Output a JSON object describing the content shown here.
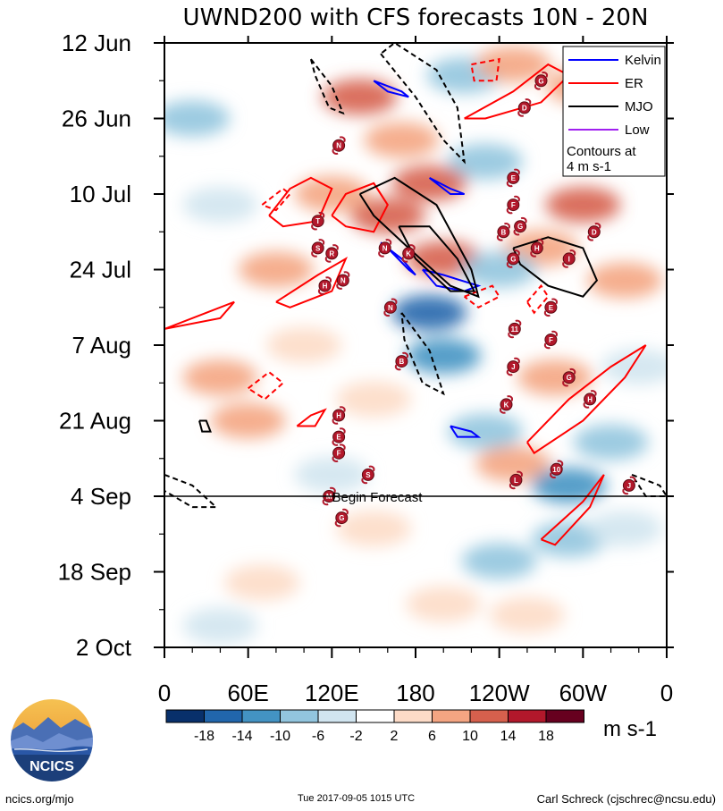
{
  "chart_data": {
    "type": "heatmap",
    "title": "UWND200 with CFS forecasts  10N - 20N",
    "x_axis": {
      "ticks": [
        "0",
        "60E",
        "120E",
        "180",
        "120W",
        "60W",
        "0"
      ],
      "values_deg": [
        0,
        60,
        120,
        180,
        240,
        300,
        360
      ],
      "range_deg": [
        0,
        360
      ]
    },
    "y_axis": {
      "ticks": [
        "12 Jun",
        "26 Jun",
        "10 Jul",
        "24 Jul",
        "7 Aug",
        "21 Aug",
        "4 Sep",
        "18 Sep",
        "2 Oct"
      ],
      "values_day": [
        0,
        14,
        28,
        42,
        56,
        70,
        84,
        98,
        112
      ],
      "range_day": [
        0,
        112
      ]
    },
    "forecast_start_day": 84,
    "forecast_label": "Begin Forecast",
    "colorbar": {
      "levels": [
        "-18",
        "-14",
        "-10",
        "-6",
        "-2",
        "2",
        "6",
        "10",
        "14",
        "18"
      ],
      "colors": [
        "#08306b",
        "#2166ac",
        "#4393c3",
        "#92c5de",
        "#d1e5f0",
        "#ffffff",
        "#fddbc7",
        "#f4a582",
        "#d6604d",
        "#b2182b",
        "#67001f"
      ],
      "units": "m s-1"
    },
    "legend": {
      "entries": [
        {
          "name": "Kelvin",
          "color": "#0000ff"
        },
        {
          "name": "ER",
          "color": "#ff0000"
        },
        {
          "name": "MJO",
          "color": "#000000"
        },
        {
          "name": "Low",
          "color": "#a020f0"
        }
      ],
      "note_line1": "Contours at",
      "note_line2": "4 m s-1",
      "placement": "top-right"
    },
    "anomaly_patches": [
      {
        "lon": 140,
        "day": 10,
        "value": 12
      },
      {
        "lon": 215,
        "day": 6,
        "value": -9
      },
      {
        "lon": 250,
        "day": 4,
        "value": 10
      },
      {
        "lon": 300,
        "day": 8,
        "value": 8
      },
      {
        "lon": 20,
        "day": 14,
        "value": -6
      },
      {
        "lon": 170,
        "day": 18,
        "value": 10
      },
      {
        "lon": 230,
        "day": 22,
        "value": -7
      },
      {
        "lon": 190,
        "day": 26,
        "value": 14
      },
      {
        "lon": 160,
        "day": 32,
        "value": 12
      },
      {
        "lon": 120,
        "day": 28,
        "value": 8
      },
      {
        "lon": 40,
        "day": 30,
        "value": -5
      },
      {
        "lon": 300,
        "day": 30,
        "value": 12
      },
      {
        "lon": 270,
        "day": 38,
        "value": 10
      },
      {
        "lon": 200,
        "day": 40,
        "value": 12
      },
      {
        "lon": 240,
        "day": 42,
        "value": -6
      },
      {
        "lon": 330,
        "day": 44,
        "value": 8
      },
      {
        "lon": 80,
        "day": 42,
        "value": 7
      },
      {
        "lon": 190,
        "day": 50,
        "value": -16
      },
      {
        "lon": 200,
        "day": 58,
        "value": -12
      },
      {
        "lon": 100,
        "day": 56,
        "value": 6
      },
      {
        "lon": 40,
        "day": 62,
        "value": 8
      },
      {
        "lon": 280,
        "day": 62,
        "value": 9
      },
      {
        "lon": 340,
        "day": 60,
        "value": -5
      },
      {
        "lon": 150,
        "day": 66,
        "value": 6
      },
      {
        "lon": 60,
        "day": 70,
        "value": 10
      },
      {
        "lon": 230,
        "day": 72,
        "value": -6
      },
      {
        "lon": 320,
        "day": 74,
        "value": -8
      },
      {
        "lon": 250,
        "day": 78,
        "value": 8
      },
      {
        "lon": 120,
        "day": 80,
        "value": -5
      },
      {
        "lon": 290,
        "day": 82,
        "value": -10
      },
      {
        "lon": 290,
        "day": 92,
        "value": -9
      },
      {
        "lon": 240,
        "day": 96,
        "value": -6
      },
      {
        "lon": 330,
        "day": 90,
        "value": -5
      },
      {
        "lon": 150,
        "day": 90,
        "value": 6
      },
      {
        "lon": 70,
        "day": 100,
        "value": 5
      },
      {
        "lon": 260,
        "day": 106,
        "value": 5
      },
      {
        "lon": 40,
        "day": 108,
        "value": -4
      },
      {
        "lon": 200,
        "day": 104,
        "value": 4
      }
    ],
    "contours": [
      {
        "wave": "ER",
        "sign": "pos",
        "points": [
          [
            75,
            32
          ],
          [
            90,
            27
          ],
          [
            105,
            25
          ],
          [
            120,
            27
          ],
          [
            110,
            33
          ],
          [
            85,
            34
          ],
          [
            75,
            32
          ]
        ]
      },
      {
        "wave": "ER",
        "sign": "pos",
        "points": [
          [
            80,
            48
          ],
          [
            110,
            43
          ],
          [
            130,
            40
          ],
          [
            120,
            46
          ],
          [
            90,
            49
          ],
          [
            80,
            48
          ]
        ]
      },
      {
        "wave": "ER",
        "sign": "pos",
        "points": [
          [
            0,
            53
          ],
          [
            30,
            50
          ],
          [
            50,
            48
          ],
          [
            40,
            51
          ],
          [
            0,
            53
          ]
        ]
      },
      {
        "wave": "ER",
        "sign": "pos",
        "points": [
          [
            215,
            14
          ],
          [
            250,
            9
          ],
          [
            275,
            4
          ],
          [
            290,
            6
          ],
          [
            270,
            11
          ],
          [
            230,
            14
          ],
          [
            215,
            14
          ]
        ]
      },
      {
        "wave": "ER",
        "sign": "pos",
        "points": [
          [
            260,
            74
          ],
          [
            290,
            66
          ],
          [
            320,
            60
          ],
          [
            345,
            56
          ],
          [
            330,
            62
          ],
          [
            300,
            70
          ],
          [
            265,
            76
          ],
          [
            260,
            74
          ]
        ]
      },
      {
        "wave": "ER",
        "sign": "pos",
        "points": [
          [
            270,
            92
          ],
          [
            300,
            85
          ],
          [
            315,
            80
          ],
          [
            305,
            86
          ],
          [
            280,
            93
          ],
          [
            270,
            92
          ]
        ]
      },
      {
        "wave": "ER",
        "sign": "pos",
        "points": [
          [
            95,
            71
          ],
          [
            105,
            69
          ],
          [
            115,
            68
          ],
          [
            108,
            71
          ],
          [
            95,
            71
          ]
        ]
      },
      {
        "wave": "ER",
        "sign": "pos",
        "points": [
          [
            120,
            32
          ],
          [
            130,
            28
          ],
          [
            150,
            26
          ],
          [
            160,
            30
          ],
          [
            150,
            35
          ],
          [
            130,
            34
          ],
          [
            120,
            32
          ]
        ]
      },
      {
        "wave": "ER",
        "sign": "neg",
        "points": [
          [
            70,
            30
          ],
          [
            85,
            27
          ],
          [
            90,
            28
          ],
          [
            80,
            31
          ],
          [
            70,
            30
          ]
        ]
      },
      {
        "wave": "ER",
        "sign": "neg",
        "points": [
          [
            60,
            64
          ],
          [
            75,
            61
          ],
          [
            85,
            63
          ],
          [
            72,
            66
          ],
          [
            60,
            64
          ]
        ]
      },
      {
        "wave": "ER",
        "sign": "neg",
        "points": [
          [
            220,
            4
          ],
          [
            240,
            3
          ],
          [
            238,
            7
          ],
          [
            222,
            7
          ],
          [
            220,
            4
          ]
        ]
      },
      {
        "wave": "ER",
        "sign": "neg",
        "points": [
          [
            260,
            48
          ],
          [
            270,
            45
          ],
          [
            275,
            47
          ],
          [
            265,
            50
          ],
          [
            260,
            48
          ]
        ]
      },
      {
        "wave": "ER",
        "sign": "neg",
        "points": [
          [
            215,
            47
          ],
          [
            235,
            45
          ],
          [
            240,
            47
          ],
          [
            225,
            49
          ],
          [
            215,
            47
          ]
        ]
      },
      {
        "wave": "Kelvin",
        "sign": "pos",
        "points": [
          [
            155,
            37
          ],
          [
            170,
            40
          ],
          [
            180,
            43
          ],
          [
            175,
            42
          ],
          [
            160,
            38
          ],
          [
            155,
            37
          ]
        ]
      },
      {
        "wave": "Kelvin",
        "sign": "pos",
        "points": [
          [
            185,
            42
          ],
          [
            200,
            43
          ],
          [
            225,
            45
          ],
          [
            215,
            46
          ],
          [
            195,
            45
          ],
          [
            185,
            42
          ]
        ]
      },
      {
        "wave": "Kelvin",
        "sign": "pos",
        "points": [
          [
            190,
            25
          ],
          [
            205,
            27
          ],
          [
            215,
            28
          ],
          [
            205,
            28
          ],
          [
            190,
            25
          ]
        ]
      },
      {
        "wave": "Kelvin",
        "sign": "pos",
        "points": [
          [
            150,
            7
          ],
          [
            170,
            9
          ],
          [
            175,
            10
          ],
          [
            160,
            9
          ],
          [
            150,
            7
          ]
        ]
      },
      {
        "wave": "Kelvin",
        "sign": "pos",
        "points": [
          [
            205,
            71
          ],
          [
            220,
            72
          ],
          [
            225,
            73
          ],
          [
            210,
            73
          ],
          [
            205,
            71
          ]
        ]
      },
      {
        "wave": "MJO",
        "sign": "pos",
        "points": [
          [
            140,
            28
          ],
          [
            165,
            25
          ],
          [
            195,
            30
          ],
          [
            220,
            42
          ],
          [
            225,
            47
          ],
          [
            205,
            45
          ],
          [
            175,
            38
          ],
          [
            150,
            32
          ],
          [
            140,
            28
          ]
        ]
      },
      {
        "wave": "MJO",
        "sign": "pos",
        "points": [
          [
            168,
            34
          ],
          [
            190,
            34
          ],
          [
            210,
            40
          ],
          [
            222,
            46
          ],
          [
            205,
            46
          ],
          [
            180,
            40
          ],
          [
            168,
            34
          ]
        ]
      },
      {
        "wave": "MJO",
        "sign": "pos",
        "points": [
          [
            250,
            38
          ],
          [
            275,
            36
          ],
          [
            300,
            38
          ],
          [
            310,
            44
          ],
          [
            300,
            47
          ],
          [
            275,
            45
          ],
          [
            255,
            41
          ],
          [
            250,
            38
          ]
        ]
      },
      {
        "wave": "MJO",
        "sign": "pos",
        "points": [
          [
            25,
            70
          ],
          [
            30,
            70
          ],
          [
            33,
            72
          ],
          [
            27,
            72
          ],
          [
            25,
            70
          ]
        ]
      },
      {
        "wave": "MJO",
        "sign": "neg",
        "points": [
          [
            105,
            3
          ],
          [
            120,
            8
          ],
          [
            128,
            13
          ],
          [
            118,
            12
          ],
          [
            108,
            6
          ],
          [
            105,
            3
          ]
        ]
      },
      {
        "wave": "MJO",
        "sign": "neg",
        "points": [
          [
            170,
            50
          ],
          [
            190,
            57
          ],
          [
            200,
            65
          ],
          [
            185,
            63
          ],
          [
            172,
            55
          ],
          [
            170,
            50
          ]
        ]
      },
      {
        "wave": "MJO",
        "sign": "neg",
        "points": [
          [
            0,
            80
          ],
          [
            20,
            82
          ],
          [
            37,
            86
          ],
          [
            20,
            86
          ],
          [
            0,
            83
          ],
          [
            0,
            80
          ]
        ]
      },
      {
        "wave": "MJO",
        "sign": "neg",
        "points": [
          [
            335,
            80
          ],
          [
            355,
            82
          ],
          [
            360,
            84
          ],
          [
            345,
            84
          ],
          [
            335,
            80
          ]
        ]
      },
      {
        "wave": "MJO",
        "sign": "neg",
        "points": [
          [
            155,
            2
          ],
          [
            180,
            10
          ],
          [
            200,
            18
          ],
          [
            215,
            22
          ],
          [
            210,
            12
          ],
          [
            195,
            5
          ],
          [
            165,
            0
          ],
          [
            155,
            2
          ]
        ]
      }
    ],
    "storms": [
      {
        "id": "N",
        "lon": 125,
        "day": 19
      },
      {
        "id": "T",
        "lon": 110,
        "day": 33
      },
      {
        "id": "S",
        "lon": 110,
        "day": 38
      },
      {
        "id": "R",
        "lon": 120,
        "day": 39
      },
      {
        "id": "N",
        "lon": 128,
        "day": 44
      },
      {
        "id": "H",
        "lon": 115,
        "day": 45
      },
      {
        "id": "N",
        "lon": 158,
        "day": 38
      },
      {
        "id": "K",
        "lon": 175,
        "day": 39
      },
      {
        "id": "N",
        "lon": 162,
        "day": 49
      },
      {
        "id": "B",
        "lon": 170,
        "day": 59
      },
      {
        "id": "G",
        "lon": 270,
        "day": 7
      },
      {
        "id": "D",
        "lon": 258,
        "day": 12
      },
      {
        "id": "E",
        "lon": 250,
        "day": 25
      },
      {
        "id": "F",
        "lon": 250,
        "day": 30
      },
      {
        "id": "B",
        "lon": 243,
        "day": 35
      },
      {
        "id": "G",
        "lon": 255,
        "day": 34
      },
      {
        "id": "H",
        "lon": 267,
        "day": 38
      },
      {
        "id": "G",
        "lon": 250,
        "day": 40
      },
      {
        "id": "I",
        "lon": 290,
        "day": 40
      },
      {
        "id": "D",
        "lon": 308,
        "day": 35
      },
      {
        "id": "E",
        "lon": 277,
        "day": 49
      },
      {
        "id": "11",
        "lon": 251,
        "day": 53
      },
      {
        "id": "F",
        "lon": 277,
        "day": 55
      },
      {
        "id": "J",
        "lon": 250,
        "day": 60
      },
      {
        "id": "G",
        "lon": 290,
        "day": 62
      },
      {
        "id": "K",
        "lon": 245,
        "day": 67
      },
      {
        "id": "H",
        "lon": 305,
        "day": 66
      },
      {
        "id": "H",
        "lon": 125,
        "day": 69
      },
      {
        "id": "E",
        "lon": 125,
        "day": 73
      },
      {
        "id": "F",
        "lon": 125,
        "day": 76
      },
      {
        "id": "S",
        "lon": 146,
        "day": 80
      },
      {
        "id": "L",
        "lon": 252,
        "day": 81
      },
      {
        "id": "10",
        "lon": 281,
        "day": 79
      },
      {
        "id": "J",
        "lon": 333,
        "day": 82
      },
      {
        "id": "M",
        "lon": 118,
        "day": 84
      },
      {
        "id": "G",
        "lon": 127,
        "day": 88
      }
    ]
  },
  "footer": {
    "url": "ncics.org/mjo",
    "timestamp": "Tue 2017-09-05 1015 UTC",
    "author": "Carl Schreck (cjschrec@ncsu.edu)"
  },
  "logo": {
    "text": "NCICS",
    "colors": {
      "sky": "#f2a93b",
      "water": "#2a57a6",
      "mountain": "#4a6fb5",
      "ring": "#1c3f7a"
    }
  }
}
